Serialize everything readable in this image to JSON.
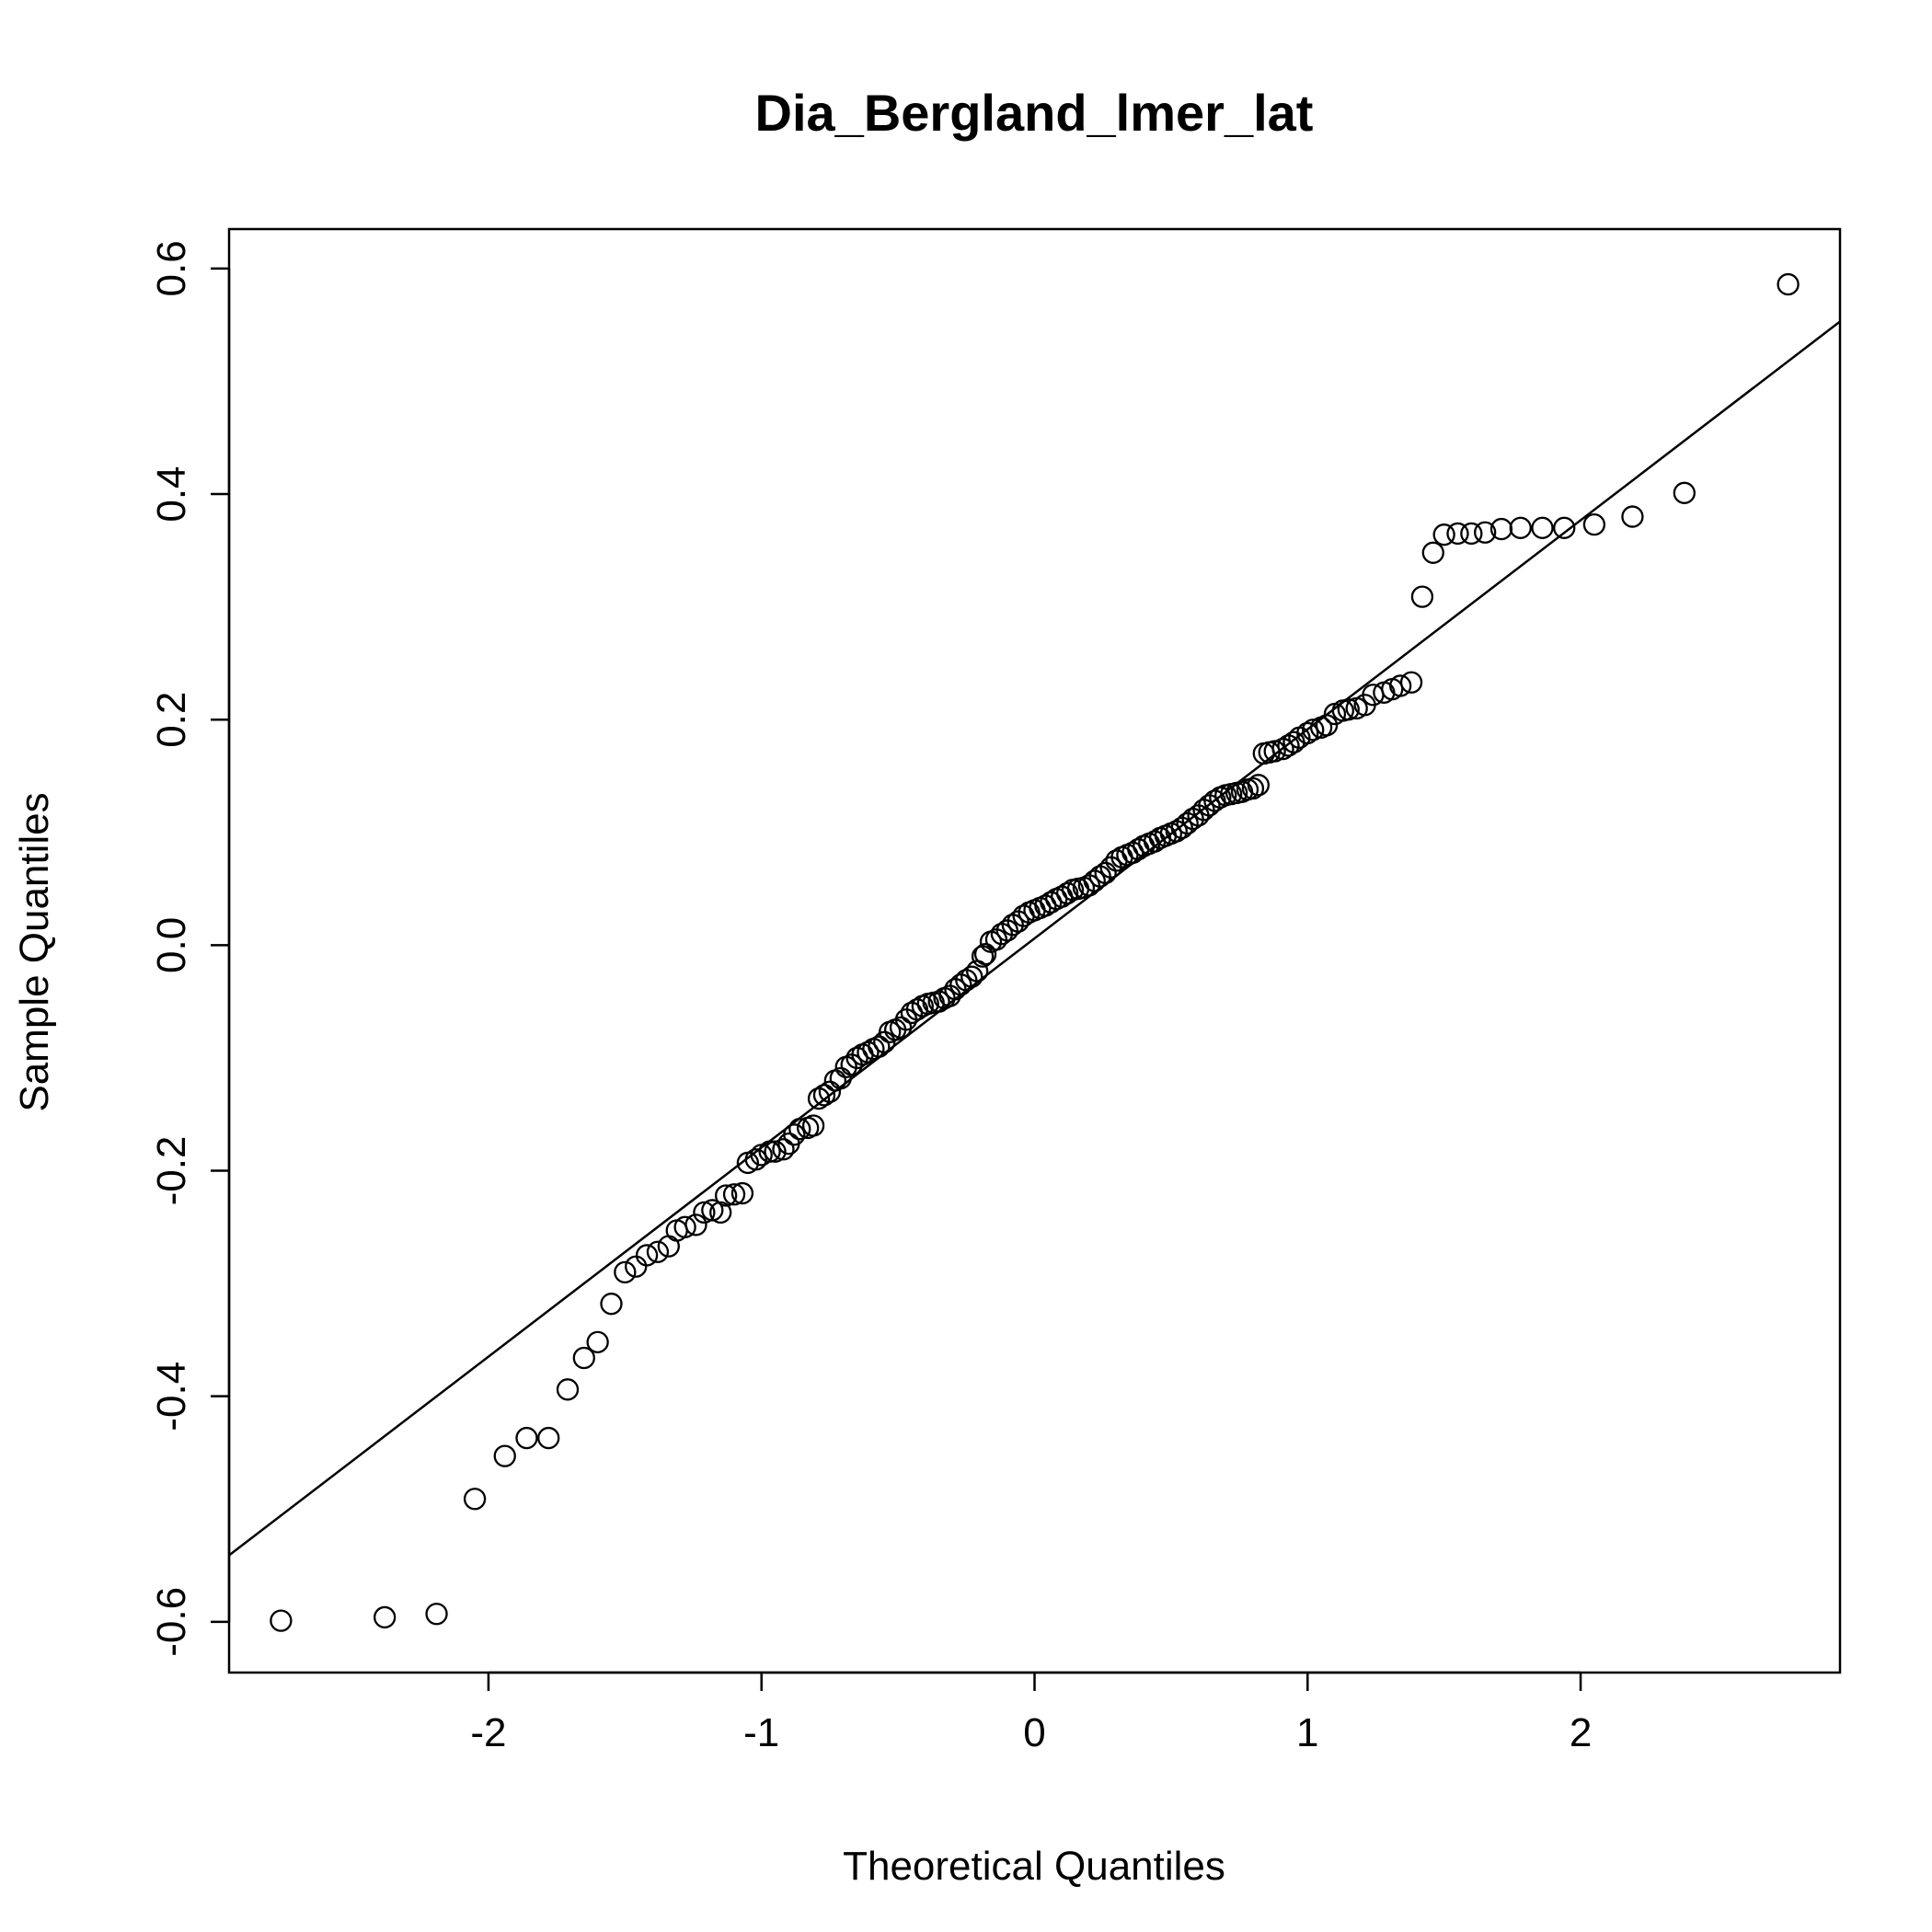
{
  "chart_data": {
    "type": "scatter",
    "title": "Dia_Bergland_lmer_lat",
    "xlabel": "Theoretical Quantiles",
    "ylabel": "Sample Quantiles",
    "xlim": [
      -2.95,
      2.95
    ],
    "ylim": [
      -0.645,
      0.635
    ],
    "xticks": [
      -2,
      -1,
      0,
      1,
      2
    ],
    "xtick_labels": [
      "-2",
      "-1",
      "0",
      "1",
      "2"
    ],
    "yticks": [
      -0.6,
      -0.4,
      -0.2,
      0.0,
      0.2,
      0.4,
      0.6
    ],
    "ytick_labels": [
      "-0.6",
      "-0.4",
      "-0.2",
      "0.0",
      "0.2",
      "0.4",
      "0.6"
    ],
    "grid": false,
    "marker": "open-circle",
    "reference_line": {
      "x1": -2.95,
      "y1": -0.541,
      "x2": 2.95,
      "y2": 0.553
    },
    "points": [
      [
        -2.76,
        -0.599
      ],
      [
        -2.38,
        -0.596
      ],
      [
        -2.19,
        -0.593
      ],
      [
        -2.05,
        -0.491
      ],
      [
        -1.94,
        -0.453
      ],
      [
        -1.86,
        -0.437
      ],
      [
        -1.78,
        -0.437
      ],
      [
        -1.71,
        -0.394
      ],
      [
        -1.65,
        -0.366
      ],
      [
        -1.6,
        -0.352
      ],
      [
        -1.55,
        -0.318
      ],
      [
        -1.5,
        -0.29
      ],
      [
        -1.46,
        -0.285
      ],
      [
        -1.42,
        -0.275
      ],
      [
        -1.38,
        -0.272
      ],
      [
        -1.34,
        -0.267
      ],
      [
        -1.31,
        -0.253
      ],
      [
        -1.28,
        -0.25
      ],
      [
        -1.24,
        -0.248
      ],
      [
        -1.21,
        -0.237
      ],
      [
        -1.18,
        -0.235
      ],
      [
        -1.15,
        -0.237
      ],
      [
        -1.13,
        -0.222
      ],
      [
        -1.1,
        -0.221
      ],
      [
        -1.07,
        -0.22
      ],
      [
        -1.05,
        -0.193
      ],
      [
        -1.02,
        -0.19
      ],
      [
        -1.0,
        -0.186
      ],
      [
        -0.97,
        -0.183
      ],
      [
        -0.95,
        -0.183
      ],
      [
        -0.92,
        -0.181
      ],
      [
        -0.9,
        -0.176
      ],
      [
        -0.88,
        -0.168
      ],
      [
        -0.86,
        -0.163
      ],
      [
        -0.83,
        -0.162
      ],
      [
        -0.81,
        -0.16
      ],
      [
        -0.79,
        -0.136
      ],
      [
        -0.77,
        -0.133
      ],
      [
        -0.75,
        -0.13
      ],
      [
        -0.73,
        -0.12
      ],
      [
        -0.71,
        -0.118
      ],
      [
        -0.69,
        -0.108
      ],
      [
        -0.67,
        -0.106
      ],
      [
        -0.65,
        -0.1
      ],
      [
        -0.63,
        -0.097
      ],
      [
        -0.61,
        -0.095
      ],
      [
        -0.59,
        -0.092
      ],
      [
        -0.57,
        -0.09
      ],
      [
        -0.55,
        -0.086
      ],
      [
        -0.53,
        -0.077
      ],
      [
        -0.51,
        -0.075
      ],
      [
        -0.49,
        -0.073
      ],
      [
        -0.47,
        -0.066
      ],
      [
        -0.45,
        -0.06
      ],
      [
        -0.43,
        -0.057
      ],
      [
        -0.41,
        -0.054
      ],
      [
        -0.39,
        -0.052
      ],
      [
        -0.37,
        -0.051
      ],
      [
        -0.35,
        -0.05
      ],
      [
        -0.33,
        -0.047
      ],
      [
        -0.31,
        -0.045
      ],
      [
        -0.29,
        -0.039
      ],
      [
        -0.27,
        -0.035
      ],
      [
        -0.25,
        -0.031
      ],
      [
        -0.23,
        -0.028
      ],
      [
        -0.21,
        -0.023
      ],
      [
        -0.19,
        -0.01
      ],
      [
        -0.18,
        -0.008
      ],
      [
        -0.16,
        0.003
      ],
      [
        -0.14,
        0.005
      ],
      [
        -0.12,
        0.01
      ],
      [
        -0.1,
        0.013
      ],
      [
        -0.08,
        0.018
      ],
      [
        -0.06,
        0.021
      ],
      [
        -0.04,
        0.026
      ],
      [
        -0.02,
        0.029
      ],
      [
        0.0,
        0.031
      ],
      [
        0.02,
        0.033
      ],
      [
        0.04,
        0.035
      ],
      [
        0.06,
        0.038
      ],
      [
        0.08,
        0.041
      ],
      [
        0.1,
        0.043
      ],
      [
        0.12,
        0.046
      ],
      [
        0.14,
        0.049
      ],
      [
        0.16,
        0.05
      ],
      [
        0.18,
        0.051
      ],
      [
        0.2,
        0.053
      ],
      [
        0.22,
        0.057
      ],
      [
        0.24,
        0.061
      ],
      [
        0.26,
        0.064
      ],
      [
        0.28,
        0.069
      ],
      [
        0.3,
        0.075
      ],
      [
        0.32,
        0.078
      ],
      [
        0.34,
        0.08
      ],
      [
        0.36,
        0.082
      ],
      [
        0.38,
        0.085
      ],
      [
        0.4,
        0.088
      ],
      [
        0.42,
        0.09
      ],
      [
        0.44,
        0.092
      ],
      [
        0.46,
        0.095
      ],
      [
        0.48,
        0.097
      ],
      [
        0.5,
        0.099
      ],
      [
        0.52,
        0.101
      ],
      [
        0.54,
        0.104
      ],
      [
        0.56,
        0.108
      ],
      [
        0.58,
        0.112
      ],
      [
        0.6,
        0.115
      ],
      [
        0.62,
        0.12
      ],
      [
        0.64,
        0.124
      ],
      [
        0.66,
        0.128
      ],
      [
        0.68,
        0.131
      ],
      [
        0.7,
        0.133
      ],
      [
        0.72,
        0.134
      ],
      [
        0.74,
        0.135
      ],
      [
        0.76,
        0.136
      ],
      [
        0.78,
        0.138
      ],
      [
        0.8,
        0.139
      ],
      [
        0.82,
        0.142
      ],
      [
        0.84,
        0.17
      ],
      [
        0.86,
        0.171
      ],
      [
        0.88,
        0.172
      ],
      [
        0.91,
        0.174
      ],
      [
        0.93,
        0.177
      ],
      [
        0.95,
        0.18
      ],
      [
        0.97,
        0.184
      ],
      [
        1.0,
        0.188
      ],
      [
        1.02,
        0.191
      ],
      [
        1.05,
        0.193
      ],
      [
        1.07,
        0.195
      ],
      [
        1.1,
        0.205
      ],
      [
        1.13,
        0.208
      ],
      [
        1.15,
        0.209
      ],
      [
        1.18,
        0.21
      ],
      [
        1.21,
        0.213
      ],
      [
        1.24,
        0.222
      ],
      [
        1.28,
        0.224
      ],
      [
        1.31,
        0.227
      ],
      [
        1.34,
        0.23
      ],
      [
        1.38,
        0.233
      ],
      [
        1.42,
        0.309
      ],
      [
        1.46,
        0.348
      ],
      [
        1.5,
        0.364
      ],
      [
        1.55,
        0.365
      ],
      [
        1.6,
        0.365
      ],
      [
        1.65,
        0.366
      ],
      [
        1.71,
        0.369
      ],
      [
        1.78,
        0.37
      ],
      [
        1.86,
        0.37
      ],
      [
        1.94,
        0.37
      ],
      [
        2.05,
        0.373
      ],
      [
        2.19,
        0.38
      ],
      [
        2.38,
        0.401
      ],
      [
        2.76,
        0.586
      ]
    ]
  }
}
